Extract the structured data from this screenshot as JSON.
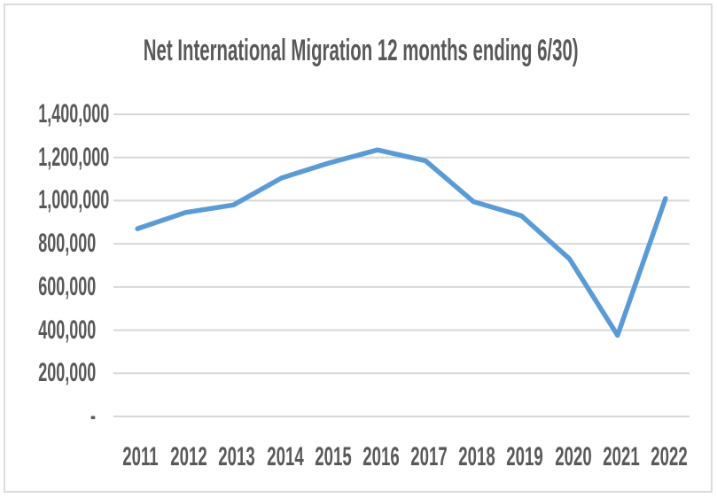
{
  "chart_data": {
    "type": "line",
    "title": "Net International Migration 12 months ending 6/30)",
    "xlabel": "",
    "ylabel": "",
    "categories": [
      "2011",
      "2012",
      "2013",
      "2014",
      "2015",
      "2016",
      "2017",
      "2018",
      "2019",
      "2020",
      "2021",
      "2022"
    ],
    "values": [
      870000,
      945000,
      980000,
      1105000,
      1175000,
      1235000,
      1185000,
      995000,
      930000,
      730000,
      376000,
      1010000
    ],
    "ylim": [
      0,
      1400000
    ],
    "yticks": [
      {
        "value": 0,
        "label": "-"
      },
      {
        "value": 200000,
        "label": "200,000"
      },
      {
        "value": 400000,
        "label": "400,000"
      },
      {
        "value": 600000,
        "label": "600,000"
      },
      {
        "value": 800000,
        "label": "800,000"
      },
      {
        "value": 1000000,
        "label": "1,000,000"
      },
      {
        "value": 1200000,
        "label": "1,200,000"
      },
      {
        "value": 1400000,
        "label": "1,400,000"
      }
    ],
    "grid": true,
    "legend": "none",
    "colors": {
      "line": "#5B9BD5",
      "gridline": "#D8D8D8",
      "text": "#595959",
      "border": "#DCDCDC",
      "background": "#FFFFFF"
    }
  }
}
